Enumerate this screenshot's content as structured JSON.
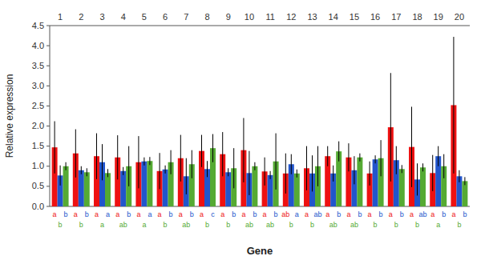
{
  "chart_data": {
    "type": "bar",
    "xlabel": "Gene",
    "ylabel": "Relative expression",
    "categories": [
      "1",
      "2",
      "3",
      "4",
      "5",
      "6",
      "7",
      "8",
      "9",
      "10",
      "11",
      "12",
      "13",
      "14",
      "15",
      "16",
      "17",
      "18",
      "19",
      "20"
    ],
    "series": [
      {
        "color": "#EE1111",
        "values": [
          1.47,
          1.32,
          1.25,
          1.22,
          1.1,
          0.88,
          1.2,
          1.38,
          1.3,
          1.4,
          0.87,
          0.82,
          0.95,
          1.25,
          1.22,
          0.82,
          1.97,
          1.48,
          0.83,
          2.52
        ],
        "errors": [
          0.65,
          0.6,
          0.57,
          0.55,
          0.65,
          0.45,
          0.58,
          0.4,
          0.55,
          0.8,
          0.35,
          0.5,
          0.55,
          0.25,
          0.35,
          0.3,
          1.35,
          1.0,
          0.45,
          1.7
        ],
        "letters": [
          "a",
          "a",
          "a",
          "a",
          "a",
          "a",
          "a",
          "a",
          "a",
          "a",
          "a",
          "ab",
          "a",
          "a",
          "a",
          "a",
          "a",
          "a",
          "a",
          "a"
        ]
      },
      {
        "color": "#2255CC",
        "values": [
          0.77,
          0.9,
          1.1,
          0.88,
          1.12,
          0.92,
          0.75,
          0.93,
          0.85,
          0.83,
          0.78,
          1.05,
          0.82,
          0.82,
          0.9,
          1.17,
          1.15,
          0.67,
          1.25,
          0.75
        ],
        "errors": [
          0.25,
          0.1,
          0.45,
          0.1,
          0.1,
          0.1,
          0.45,
          0.2,
          0.1,
          0.55,
          0.1,
          0.25,
          0.45,
          0.2,
          0.35,
          0.1,
          0.35,
          0.4,
          0.25,
          0.15
        ],
        "letters": [
          "b",
          "b",
          "a",
          "b",
          "a",
          "b",
          "b",
          "c",
          "b",
          "b",
          "b",
          "a",
          "ab",
          "b",
          "b",
          "b",
          "b",
          "ab",
          "b",
          "b"
        ]
      },
      {
        "color": "#55AA33",
        "values": [
          1.0,
          0.85,
          0.83,
          1.0,
          1.13,
          1.1,
          1.05,
          1.45,
          0.95,
          1.0,
          1.12,
          0.82,
          1.0,
          1.37,
          1.22,
          1.2,
          0.93,
          0.97,
          1.0,
          0.63
        ],
        "errors": [
          0.1,
          0.1,
          0.1,
          0.5,
          0.1,
          0.3,
          0.35,
          0.35,
          0.5,
          0.1,
          0.7,
          0.1,
          0.5,
          0.25,
          0.1,
          0.45,
          0.1,
          0.1,
          0.3,
          0.1
        ],
        "letters": [
          "b",
          "b",
          "a",
          "ab",
          "a",
          "b",
          "ab",
          "b",
          "b",
          "ab",
          "ab",
          "b",
          "b",
          "ab",
          "ab",
          "b",
          "b",
          "b",
          "a",
          "b"
        ]
      }
    ],
    "ylim": [
      0,
      4.5
    ],
    "yticks": [
      {
        "value": 0,
        "label": "0.0"
      },
      0.5,
      {
        "value": 1.0,
        "label": "1.0"
      },
      1.5,
      {
        "value": 2.0,
        "label": "2.0"
      },
      2.5,
      {
        "value": 3.0,
        "label": "3.0"
      },
      3.5,
      {
        "value": 4.0,
        "label": "4.0"
      },
      4.5
    ]
  }
}
